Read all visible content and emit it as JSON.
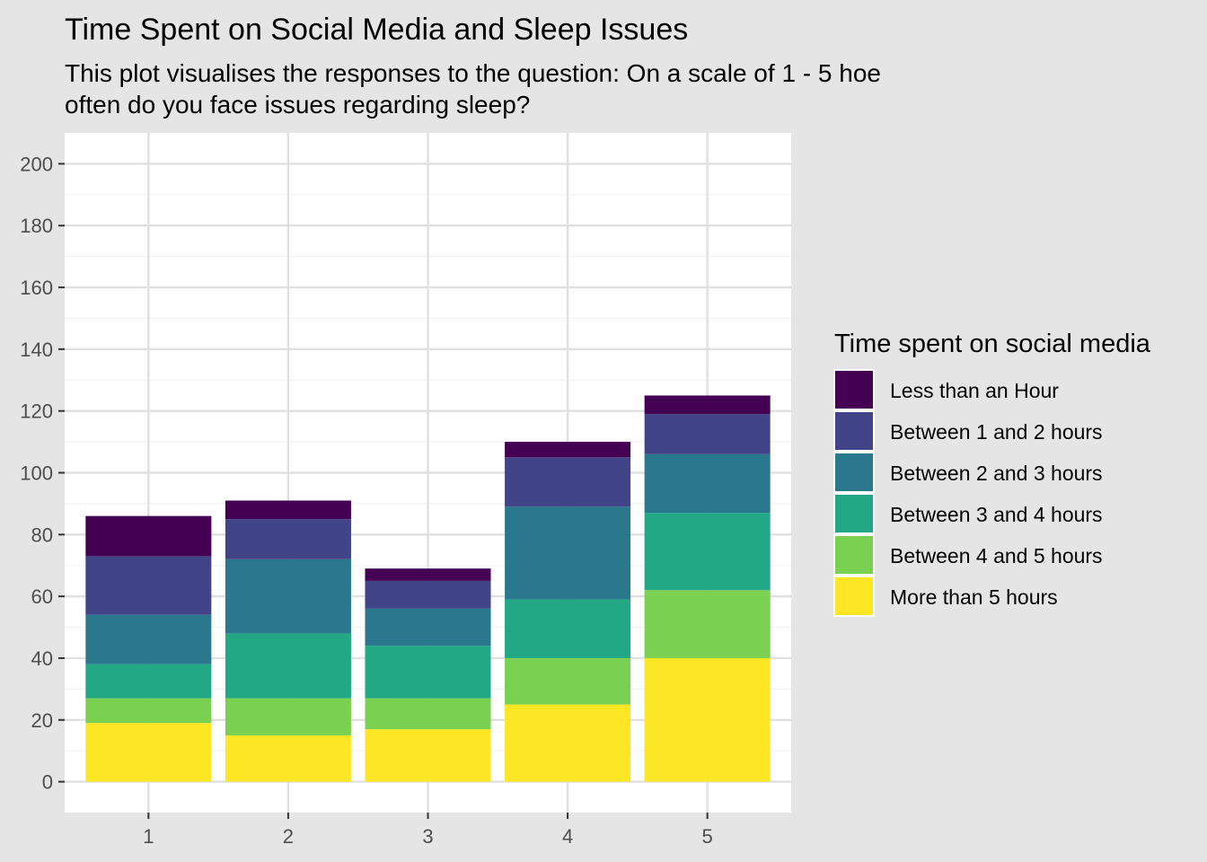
{
  "chart_data": {
    "type": "bar",
    "stacked": true,
    "title": "Time Spent on Social Media and Sleep Issues",
    "subtitle_lines": [
      "This plot visualises the responses to the question: On a scale of 1 - 5 hoe",
      "often do you face issues regarding sleep?"
    ],
    "xlabel": "",
    "ylabel": "",
    "categories": [
      "1",
      "2",
      "3",
      "4",
      "5"
    ],
    "ylim": [
      -10,
      210
    ],
    "yticks": [
      0,
      20,
      40,
      60,
      80,
      100,
      120,
      140,
      160,
      180,
      200
    ],
    "grid": true,
    "legend_position": "right",
    "legend_title": "Time spent on social media",
    "series": [
      {
        "name": "Less than an Hour",
        "color": "#440154",
        "values": [
          13,
          6,
          4,
          5,
          6
        ]
      },
      {
        "name": "Between 1 and 2 hours",
        "color": "#414487",
        "values": [
          19,
          13,
          9,
          16,
          13
        ]
      },
      {
        "name": "Between 2 and 3 hours",
        "color": "#2a788e",
        "values": [
          16,
          24,
          12,
          30,
          19
        ]
      },
      {
        "name": "Between 3 and 4 hours",
        "color": "#22a884",
        "values": [
          11,
          21,
          17,
          19,
          25
        ]
      },
      {
        "name": "Between 4 and 5 hours",
        "color": "#7ad151",
        "values": [
          8,
          12,
          10,
          15,
          22
        ]
      },
      {
        "name": "More than 5 hours",
        "color": "#fde725",
        "values": [
          19,
          15,
          17,
          25,
          40
        ]
      }
    ]
  }
}
